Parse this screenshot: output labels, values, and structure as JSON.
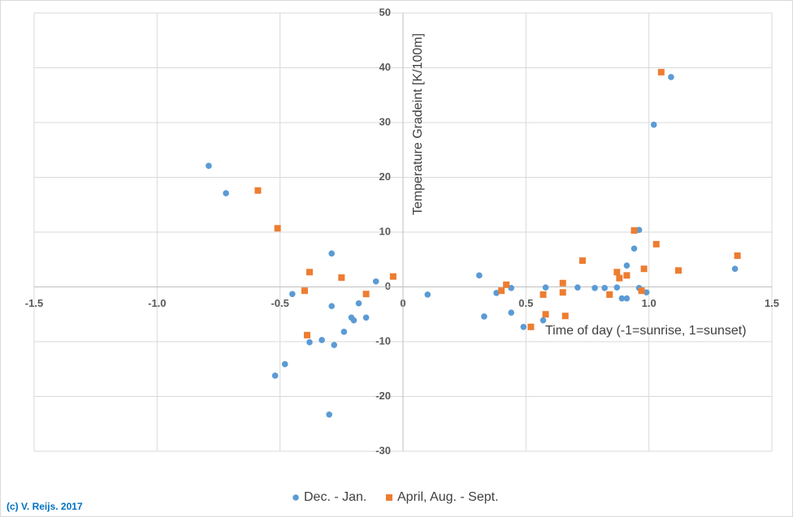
{
  "chart_data": {
    "type": "scatter",
    "x_label": "Time of day (-1=sunrise, 1=sunset)",
    "y_label": "Temperature Gradeint [K/100m]",
    "xlim": [
      -1.5,
      1.5
    ],
    "xticks": [
      -1.5,
      {
        "value": -1,
        "label": "-1.0"
      },
      -0.5,
      0,
      0.5,
      {
        "value": 1,
        "label": "1.0"
      },
      1.5
    ],
    "ylim": [
      -30,
      50
    ],
    "yticks": [
      -30,
      -20,
      -10,
      0,
      10,
      20,
      30,
      40,
      50
    ],
    "grid": true,
    "legend": "bottom",
    "footnote": "(c) V. Reijs. 2017",
    "series": [
      {
        "name": "Dec. - Jan.",
        "color": "#5b9bd5",
        "marker": "circle",
        "x": [
          -0.79,
          -0.72,
          -0.45,
          -0.48,
          -0.52,
          -0.38,
          -0.33,
          -0.28,
          -0.3,
          -0.29,
          -0.29,
          -0.24,
          -0.21,
          -0.2,
          -0.18,
          -0.15,
          -0.11,
          0.1,
          0.31,
          0.33,
          0.38,
          0.44,
          0.44,
          0.49,
          0.57,
          0.58,
          0.71,
          0.78,
          0.82,
          0.87,
          0.89,
          0.91,
          0.91,
          0.94,
          0.96,
          0.96,
          0.99,
          1.02,
          1.09,
          1.35
        ],
        "values": [
          22.1,
          17.1,
          -1.3,
          -14.1,
          -16.2,
          -10.1,
          -9.7,
          -10.6,
          -23.3,
          6.1,
          -3.5,
          -8.2,
          -5.6,
          -6.1,
          -3.0,
          -5.6,
          1.0,
          -1.4,
          2.1,
          -5.4,
          -1.1,
          -0.2,
          -4.7,
          -7.3,
          -6.1,
          -0.1,
          -0.1,
          -0.2,
          -0.2,
          -0.1,
          -2.1,
          -2.1,
          3.9,
          7.0,
          10.4,
          -0.2,
          -1.0,
          29.6,
          38.3,
          3.3
        ]
      },
      {
        "name": "April, Aug. - Sept.",
        "color": "#ed7d31",
        "marker": "square",
        "x": [
          -0.59,
          -0.51,
          -0.4,
          -0.39,
          -0.38,
          -0.25,
          -0.15,
          -0.04,
          0.4,
          0.42,
          0.52,
          0.57,
          0.58,
          0.65,
          0.65,
          0.66,
          0.73,
          0.84,
          0.87,
          0.88,
          0.91,
          0.94,
          0.97,
          0.98,
          1.03,
          1.05,
          1.12,
          1.36
        ],
        "values": [
          17.6,
          10.7,
          -0.7,
          -8.8,
          2.7,
          1.7,
          -1.3,
          1.9,
          -0.7,
          0.4,
          -7.3,
          -1.4,
          -5.0,
          0.7,
          -1.0,
          -5.3,
          4.8,
          -1.4,
          2.7,
          1.6,
          2.1,
          10.3,
          -0.7,
          3.3,
          7.8,
          39.2,
          3.0,
          5.7
        ]
      }
    ]
  }
}
